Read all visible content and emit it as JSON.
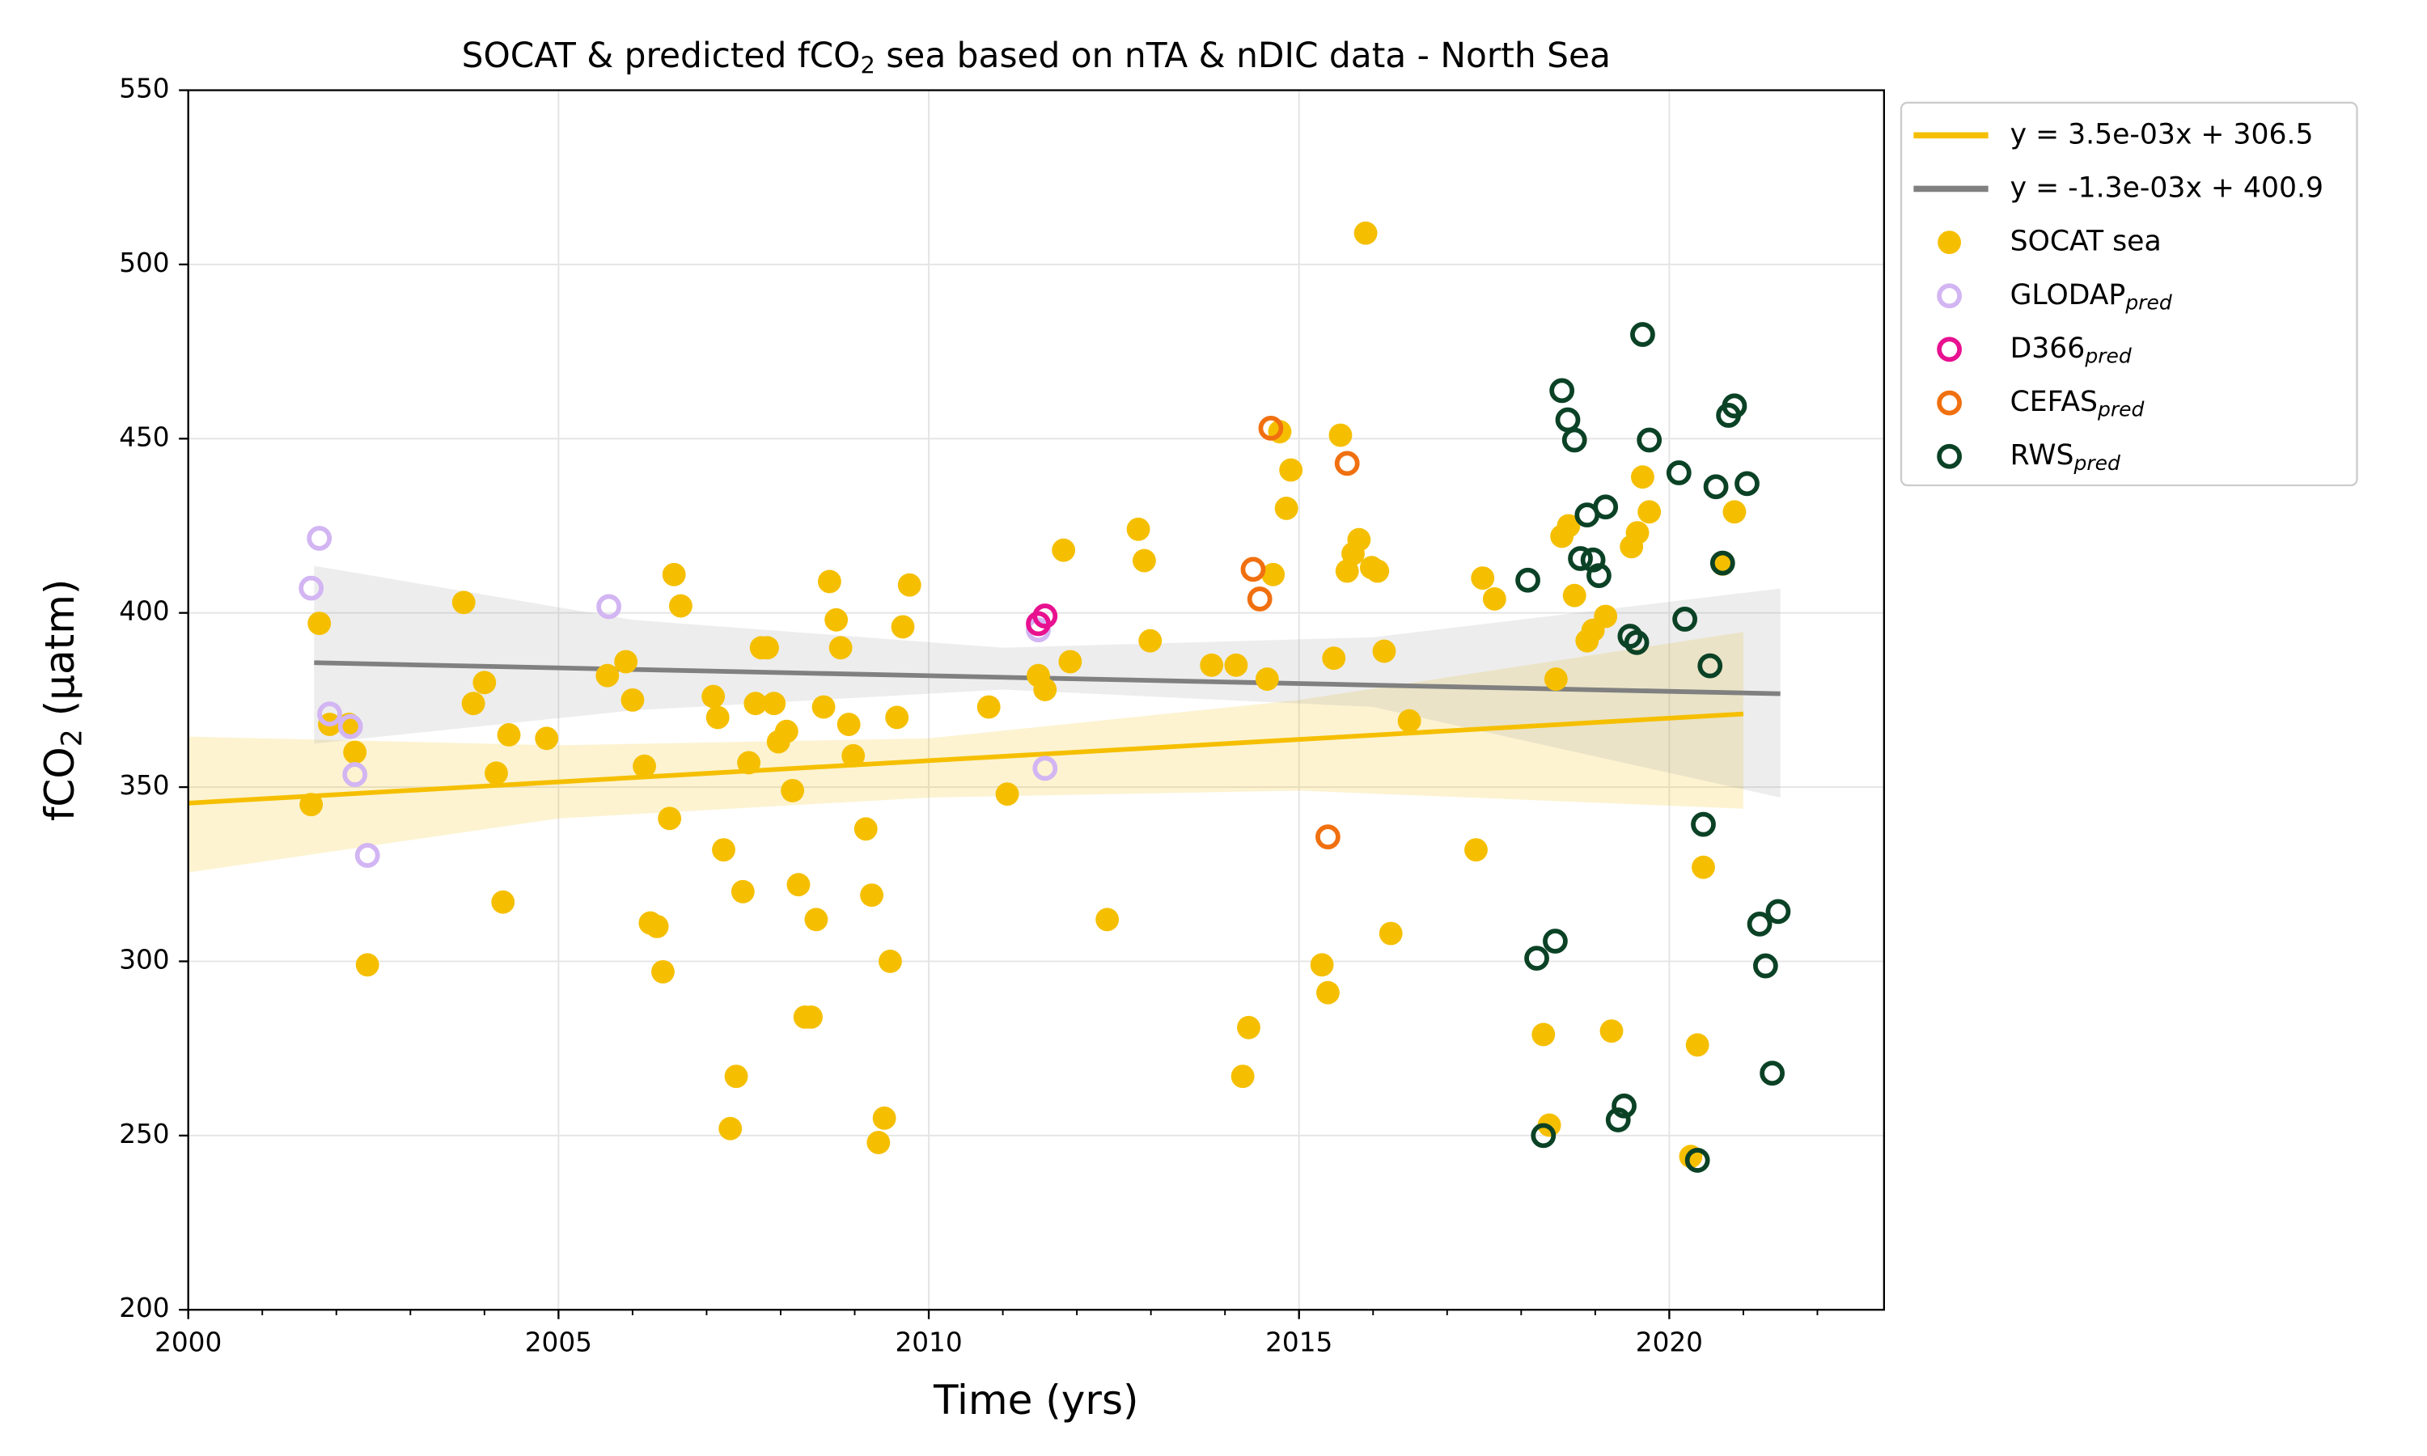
{
  "chart_data": {
    "type": "scatter",
    "title": "SOCAT & predicted fCO",
    "title_subscript": "2",
    "title_rest": " sea based on nTA & nDIC data - North Sea",
    "xlabel": "Time (yrs)",
    "ylabel": "fCO",
    "ylabel_subscript": "2",
    "ylabel_rest": " (µatm)",
    "xlim": [
      2000,
      2022.9
    ],
    "ylim": [
      200,
      550
    ],
    "xticks": [
      2000,
      2005,
      2010,
      2015,
      2020
    ],
    "yticks": [
      200,
      250,
      300,
      350,
      400,
      450,
      500,
      550
    ],
    "xminor": 1,
    "grid": true,
    "legend": "outside-upper-right",
    "bands": [
      {
        "color": "#f5bf00",
        "x": [
          2000,
          2005,
          2010,
          2015,
          2021
        ],
        "lower": [
          325.5,
          341,
          347,
          349,
          343.8
        ],
        "upper": [
          364.5,
          362,
          364,
          375,
          394.5
        ]
      },
      {
        "color": "#9a9a9a",
        "x": [
          2001.7,
          2006,
          2011,
          2016,
          2021.5
        ],
        "lower": [
          362.5,
          372,
          378,
          373,
          347
        ],
        "upper": [
          413.5,
          398,
          390,
          393,
          407
        ]
      }
    ],
    "series": [
      {
        "name": "y = 3.5e-03x + 306.5",
        "kind": "line",
        "color": "#f5bf00",
        "x": [
          2000,
          2021
        ],
        "values": [
          345.4,
          371
        ]
      },
      {
        "name": "y = -1.3e-03x + 400.9",
        "kind": "line",
        "color": "#808080",
        "x": [
          2001.7,
          2021.5
        ],
        "values": [
          385.7,
          376.8
        ]
      },
      {
        "name": "SOCAT sea",
        "kind": "scatter",
        "marker": "filled",
        "color": "#f5bf00",
        "x": [
          2001.66,
          2001.77,
          2001.91,
          2002.17,
          2002.25,
          2002.42,
          2003.72,
          2003.85,
          2004.0,
          2004.16,
          2004.25,
          2004.33,
          2004.84,
          2005.66,
          2005.91,
          2006.0,
          2006.16,
          2006.24,
          2006.33,
          2006.41,
          2006.5,
          2006.56,
          2006.65,
          2007.09,
          2007.15,
          2007.23,
          2007.32,
          2007.4,
          2007.49,
          2007.57,
          2007.66,
          2007.74,
          2007.82,
          2007.91,
          2007.97,
          2008.08,
          2008.16,
          2008.24,
          2008.33,
          2008.41,
          2008.48,
          2008.58,
          2008.66,
          2008.75,
          2008.81,
          2008.92,
          2008.98,
          2009.15,
          2009.23,
          2009.32,
          2009.4,
          2009.48,
          2009.57,
          2009.65,
          2009.74,
          2010.81,
          2011.06,
          2011.48,
          2011.57,
          2011.82,
          2011.91,
          2012.41,
          2012.83,
          2012.91,
          2012.99,
          2013.82,
          2014.15,
          2014.24,
          2014.32,
          2014.57,
          2014.65,
          2014.74,
          2014.89,
          2014.83,
          2015.31,
          2015.39,
          2015.47,
          2015.56,
          2015.65,
          2015.73,
          2015.81,
          2015.9,
          2015.98,
          2016.06,
          2016.15,
          2016.24,
          2016.49,
          2017.39,
          2017.48,
          2017.64,
          2018.3,
          2018.38,
          2018.47,
          2018.55,
          2018.64,
          2018.72,
          2018.89,
          2018.97,
          2019.14,
          2019.22,
          2019.49,
          2019.57,
          2019.64,
          2019.73,
          2020.29,
          2020.38,
          2020.46,
          2020.72,
          2020.88
        ],
        "values": [
          345,
          397,
          368,
          368,
          360,
          299,
          403,
          374,
          380,
          354,
          317,
          365,
          364,
          382,
          386,
          375,
          356,
          311,
          310,
          297,
          341,
          411,
          402,
          376,
          370,
          332,
          252,
          267,
          320,
          357,
          374,
          390,
          390,
          374,
          363,
          366,
          349,
          322,
          284,
          284,
          312,
          373,
          409,
          398,
          390,
          368,
          359,
          338,
          319,
          248,
          255,
          300,
          370,
          396,
          408,
          373,
          348,
          382,
          378,
          418,
          386,
          312,
          424,
          415,
          392,
          385,
          385,
          267,
          281,
          381,
          411,
          452,
          441,
          430,
          299,
          291,
          387,
          451,
          412,
          417,
          421,
          509,
          413,
          412,
          389,
          308,
          369,
          332,
          410,
          404,
          279,
          253,
          381,
          422,
          425,
          405,
          392,
          395,
          399,
          280,
          419,
          423,
          439,
          429,
          244,
          276,
          327,
          414,
          429
        ]
      },
      {
        "name": "GLODAP",
        "subscript": "pred",
        "kind": "scatter",
        "marker": "open",
        "color": "#d2b5f2",
        "x": [
          2001.66,
          2001.77,
          2001.91,
          2002.19,
          2002.25,
          2002.42,
          2005.68,
          2011.48,
          2011.57
        ],
        "values": [
          407.1,
          421.4,
          371,
          367.4,
          353.6,
          330.4,
          401.8,
          395.1,
          355.4
        ]
      },
      {
        "name": "D366",
        "subscript": "pred",
        "kind": "scatter",
        "marker": "open",
        "color": "#e8118f",
        "x": [
          2011.48,
          2011.57
        ],
        "values": [
          396.9,
          399.1
        ]
      },
      {
        "name": "CEFAS",
        "subscript": "pred",
        "kind": "scatter",
        "marker": "open",
        "color": "#f07010",
        "x": [
          2014.62,
          2014.38,
          2014.47,
          2015.65,
          2015.39
        ],
        "values": [
          453,
          412.5,
          404,
          442.9,
          335.7
        ]
      },
      {
        "name": "RWS",
        "subscript": "pred",
        "kind": "scatter",
        "marker": "open",
        "color": "#0b4226",
        "x": [
          2018.55,
          2018.63,
          2018.72,
          2018.09,
          2018.89,
          2018.8,
          2018.97,
          2019.05,
          2019.14,
          2019.47,
          2019.56,
          2019.64,
          2019.73,
          2020.13,
          2020.21,
          2020.46,
          2020.55,
          2020.63,
          2020.72,
          2020.8,
          2020.88,
          2021.05,
          2018.21,
          2018.46,
          2018.3,
          2019.31,
          2019.39,
          2020.38,
          2021.22,
          2021.3,
          2021.47,
          2021.39
        ],
        "values": [
          463.8,
          455.4,
          449.6,
          409.4,
          428.1,
          415.6,
          415.2,
          410.7,
          430.4,
          393.3,
          391.5,
          479.9,
          449.6,
          440.2,
          398.2,
          339.3,
          384.8,
          436.2,
          414.3,
          456.7,
          459.4,
          437.1,
          300.9,
          305.8,
          250,
          254.5,
          258.5,
          242.9,
          310.7,
          298.7,
          314.3,
          267.9
        ]
      }
    ]
  }
}
